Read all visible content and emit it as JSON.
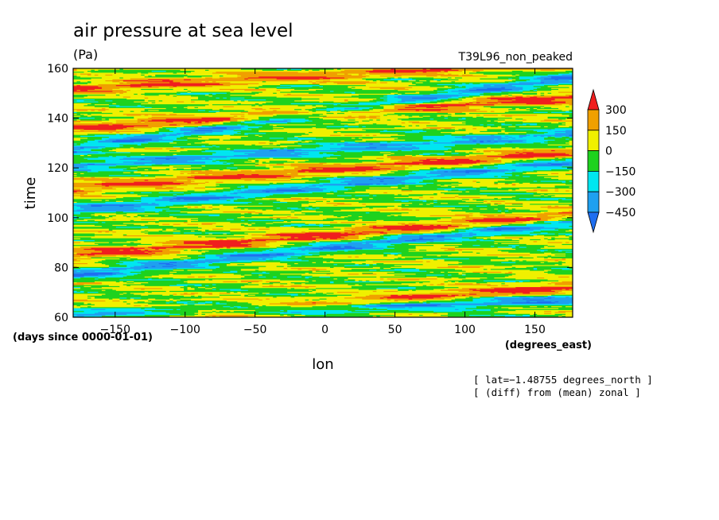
{
  "chart_data": {
    "type": "heatmap",
    "title": "air pressure at sea level",
    "subtitle": "(Pa)",
    "run_label": "T39L96_non_peaked",
    "xlabel": "lon",
    "ylabel": "time",
    "x_units": "(degrees_east)",
    "y_units": "(days since 0000-01-01)",
    "xlim": [
      -180,
      177
    ],
    "ylim": [
      60,
      160
    ],
    "x_ticks": [
      -150,
      -100,
      -50,
      0,
      50,
      100,
      150
    ],
    "x_tick_labels": [
      "−150",
      "−100",
      "−50",
      "0",
      "50",
      "100",
      "150"
    ],
    "y_ticks": [
      60,
      80,
      100,
      120,
      140,
      160
    ],
    "y_tick_labels": [
      "60",
      "80",
      "100",
      "120",
      "140",
      "160"
    ],
    "notes": [
      "[ lat=−1.48755 degrees_north ]",
      "[ (diff) from (mean) zonal ]"
    ],
    "colorbar": {
      "levels": [
        -450,
        -300,
        -150,
        0,
        150,
        300
      ],
      "labels": [
        "−450",
        "−300",
        "−150",
        "0",
        "150",
        "300"
      ],
      "colors": [
        "#1e6ef0",
        "#1ea0f0",
        "#00e6f0",
        "#1ed21e",
        "#f0f000",
        "#f0a000",
        "#f01e1e"
      ]
    },
    "features": [
      {
        "kind": "low",
        "t_at_lon_min": 60.5,
        "slope_days_per_deg": 0.0195,
        "amplitude": -420
      },
      {
        "kind": "low",
        "t_at_lon_min": 77.0,
        "slope_days_per_deg": 0.06,
        "amplitude": -400
      },
      {
        "kind": "low",
        "t_at_lon_min": 103.0,
        "slope_days_per_deg": 0.055,
        "amplitude": -380
      },
      {
        "kind": "low",
        "t_at_lon_min": 121.0,
        "slope_days_per_deg": 0.035,
        "amplitude": -350
      },
      {
        "kind": "low",
        "t_at_lon_min": 128.0,
        "slope_days_per_deg": 0.08,
        "amplitude": -400
      },
      {
        "kind": "high",
        "t_at_lon_min": 58.0,
        "slope_days_per_deg": 0.04,
        "amplitude": 380
      },
      {
        "kind": "high",
        "t_at_lon_min": 85.0,
        "slope_days_per_deg": 0.045,
        "amplitude": 350
      },
      {
        "kind": "high",
        "t_at_lon_min": 112.0,
        "slope_days_per_deg": 0.04,
        "amplitude": 330
      },
      {
        "kind": "high",
        "t_at_lon_min": 136.0,
        "slope_days_per_deg": 0.035,
        "amplitude": 350
      },
      {
        "kind": "high",
        "t_at_lon_min": 152.0,
        "slope_days_per_deg": 0.03,
        "amplitude": 300
      }
    ]
  }
}
